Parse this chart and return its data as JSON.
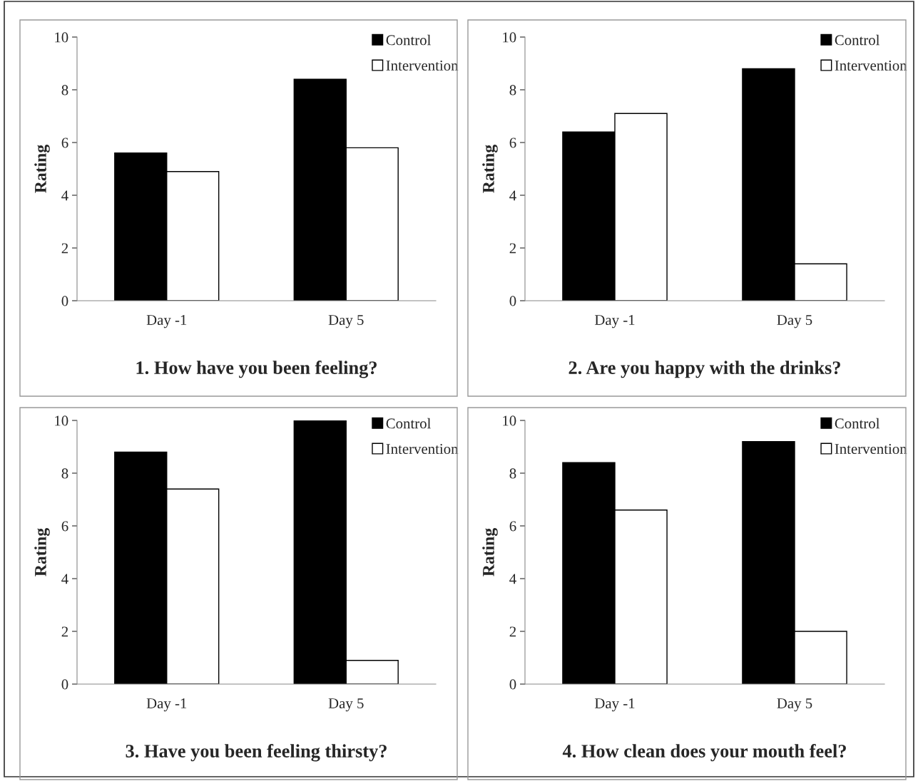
{
  "chart_data": [
    {
      "type": "bar",
      "title": "1. How have you been feeling?",
      "ylabel": "Rating",
      "categories": [
        "Day -1",
        "Day 5"
      ],
      "series": [
        {
          "name": "Control",
          "color": "#000000",
          "values": [
            5.6,
            8.4
          ]
        },
        {
          "name": "Intervention",
          "color": "#ffffff",
          "values": [
            4.9,
            5.8
          ]
        }
      ],
      "ylim": [
        0,
        10
      ],
      "yticks": [
        0,
        2,
        4,
        6,
        8,
        10
      ],
      "legend": "top right",
      "grid": false
    },
    {
      "type": "bar",
      "title": "2. Are you happy with the drinks?",
      "ylabel": "Rating",
      "categories": [
        "Day -1",
        "Day 5"
      ],
      "series": [
        {
          "name": "Control",
          "color": "#000000",
          "values": [
            6.4,
            8.8
          ]
        },
        {
          "name": "Intervention",
          "color": "#ffffff",
          "values": [
            7.1,
            1.4
          ]
        }
      ],
      "ylim": [
        0,
        10
      ],
      "yticks": [
        0,
        2,
        4,
        6,
        8,
        10
      ],
      "legend": "top right",
      "grid": false
    },
    {
      "type": "bar",
      "title": "3. Have you been feeling thirsty?",
      "ylabel": "Rating",
      "categories": [
        "Day -1",
        "Day 5"
      ],
      "series": [
        {
          "name": "Control",
          "color": "#000000",
          "values": [
            8.8,
            10
          ]
        },
        {
          "name": "Intervention",
          "color": "#ffffff",
          "values": [
            7.4,
            0.9
          ]
        }
      ],
      "ylim": [
        0,
        10
      ],
      "yticks": [
        0,
        2,
        4,
        6,
        8,
        10
      ],
      "legend": "top right",
      "grid": false
    },
    {
      "type": "bar",
      "title": "4. How clean does your mouth feel?",
      "ylabel": "Rating",
      "categories": [
        "Day -1",
        "Day 5"
      ],
      "series": [
        {
          "name": "Control",
          "color": "#000000",
          "values": [
            8.4,
            9.2
          ]
        },
        {
          "name": "Intervention",
          "color": "#ffffff",
          "values": [
            6.6,
            2.0
          ]
        }
      ],
      "ylim": [
        0,
        10
      ],
      "yticks": [
        0,
        2,
        4,
        6,
        8,
        10
      ],
      "legend": "top right",
      "grid": false
    }
  ]
}
